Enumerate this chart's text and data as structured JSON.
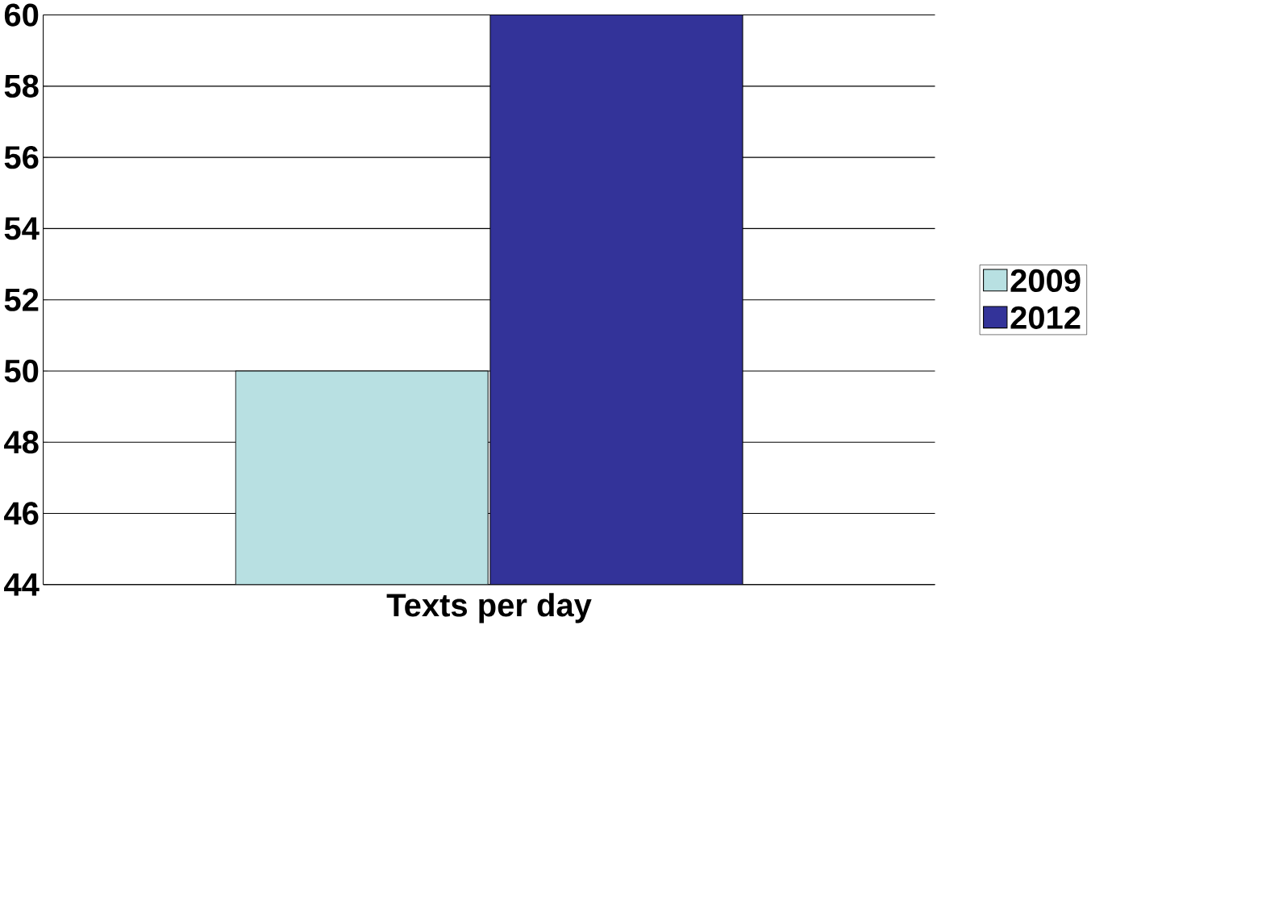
{
  "chart_data": {
    "type": "bar",
    "categories": [
      "Texts per day"
    ],
    "series": [
      {
        "name": "2009",
        "color": "#b8e0e2",
        "values": [
          50
        ]
      },
      {
        "name": "2012",
        "color": "#333399",
        "values": [
          60
        ]
      }
    ],
    "ylim": [
      44,
      60
    ],
    "yticks": [
      44,
      46,
      48,
      50,
      52,
      54,
      56,
      58,
      60
    ],
    "grid": "y",
    "legend": "right"
  }
}
